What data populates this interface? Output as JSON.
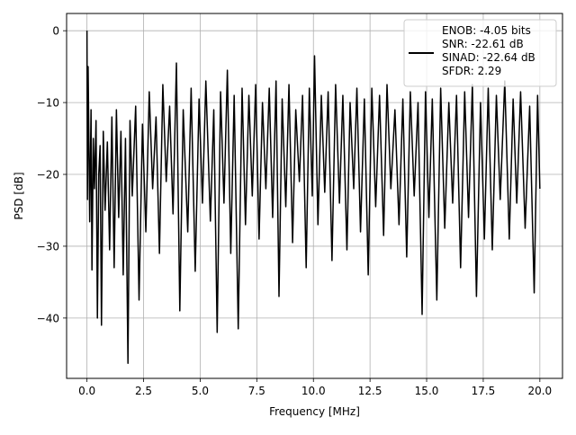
{
  "chart_data": {
    "type": "line",
    "xlabel": "Frequency [MHz]",
    "ylabel": "PSD [dB]",
    "xlim": [
      -0.9,
      21.0
    ],
    "ylim": [
      -48.4,
      2.4
    ],
    "x_ticks": [
      0.0,
      2.5,
      5.0,
      7.5,
      10.0,
      12.5,
      15.0,
      17.5,
      20.0
    ],
    "x_tick_labels": [
      "0.0",
      "2.5",
      "5.0",
      "7.5",
      "10.0",
      "12.5",
      "15.0",
      "17.5",
      "20.0"
    ],
    "y_ticks": [
      0,
      -10,
      -20,
      -30,
      -40
    ],
    "y_tick_labels": [
      "0",
      "−10",
      "−20",
      "−30",
      "−40"
    ],
    "grid": true,
    "legend_placement": "upper right",
    "series": [
      {
        "name": "ENOB: -4.05 bits\nSNR: -22.61 dB\nSINAD: -22.64 dB\nSFDR: 2.29",
        "color": "#000000",
        "points": [
          [
            0.0,
            0.0
          ],
          [
            0.02,
            -23.5
          ],
          [
            0.05,
            -5.0
          ],
          [
            0.08,
            -14.0
          ],
          [
            0.12,
            -26.6
          ],
          [
            0.18,
            -11.0
          ],
          [
            0.22,
            -33.3
          ],
          [
            0.28,
            -15.0
          ],
          [
            0.33,
            -22.0
          ],
          [
            0.4,
            -12.5
          ],
          [
            0.46,
            -40.0
          ],
          [
            0.52,
            -20.0
          ],
          [
            0.58,
            -16.0
          ],
          [
            0.64,
            -41.0
          ],
          [
            0.72,
            -14.0
          ],
          [
            0.8,
            -25.0
          ],
          [
            0.9,
            -15.5
          ],
          [
            1.0,
            -30.5
          ],
          [
            1.1,
            -12.0
          ],
          [
            1.2,
            -33.0
          ],
          [
            1.3,
            -11.0
          ],
          [
            1.4,
            -26.0
          ],
          [
            1.5,
            -14.0
          ],
          [
            1.6,
            -34.0
          ],
          [
            1.7,
            -15.0
          ],
          [
            1.81,
            -46.3
          ],
          [
            1.9,
            -12.5
          ],
          [
            2.0,
            -23.0
          ],
          [
            2.15,
            -10.5
          ],
          [
            2.3,
            -37.5
          ],
          [
            2.45,
            -13.0
          ],
          [
            2.6,
            -28.0
          ],
          [
            2.75,
            -8.5
          ],
          [
            2.9,
            -22.0
          ],
          [
            3.05,
            -12.0
          ],
          [
            3.2,
            -31.0
          ],
          [
            3.35,
            -7.5
          ],
          [
            3.5,
            -21.0
          ],
          [
            3.65,
            -10.5
          ],
          [
            3.8,
            -25.5
          ],
          [
            3.95,
            -4.5
          ],
          [
            4.1,
            -39.0
          ],
          [
            4.25,
            -11.0
          ],
          [
            4.45,
            -28.0
          ],
          [
            4.6,
            -8.0
          ],
          [
            4.78,
            -33.5
          ],
          [
            4.95,
            -9.5
          ],
          [
            5.1,
            -24.0
          ],
          [
            5.25,
            -7.0
          ],
          [
            5.45,
            -26.5
          ],
          [
            5.6,
            -11.0
          ],
          [
            5.75,
            -42.0
          ],
          [
            5.9,
            -8.5
          ],
          [
            6.05,
            -24.0
          ],
          [
            6.2,
            -5.5
          ],
          [
            6.35,
            -31.0
          ],
          [
            6.5,
            -9.0
          ],
          [
            6.68,
            -41.5
          ],
          [
            6.85,
            -8.0
          ],
          [
            7.0,
            -27.0
          ],
          [
            7.15,
            -9.0
          ],
          [
            7.3,
            -23.0
          ],
          [
            7.45,
            -7.5
          ],
          [
            7.6,
            -29.0
          ],
          [
            7.75,
            -10.0
          ],
          [
            7.9,
            -22.0
          ],
          [
            8.05,
            -8.0
          ],
          [
            8.2,
            -26.0
          ],
          [
            8.35,
            -7.0
          ],
          [
            8.48,
            -37.0
          ],
          [
            8.62,
            -9.5
          ],
          [
            8.78,
            -24.5
          ],
          [
            8.92,
            -7.5
          ],
          [
            9.08,
            -29.5
          ],
          [
            9.22,
            -11.0
          ],
          [
            9.38,
            -21.0
          ],
          [
            9.52,
            -9.0
          ],
          [
            9.68,
            -33.0
          ],
          [
            9.82,
            -8.0
          ],
          [
            9.95,
            -23.0
          ],
          [
            10.05,
            -3.5
          ],
          [
            10.2,
            -27.0
          ],
          [
            10.35,
            -9.0
          ],
          [
            10.5,
            -22.5
          ],
          [
            10.65,
            -8.5
          ],
          [
            10.82,
            -32.0
          ],
          [
            10.98,
            -7.5
          ],
          [
            11.15,
            -24.0
          ],
          [
            11.3,
            -9.0
          ],
          [
            11.48,
            -30.5
          ],
          [
            11.62,
            -10.0
          ],
          [
            11.78,
            -22.0
          ],
          [
            11.92,
            -8.0
          ],
          [
            12.08,
            -28.0
          ],
          [
            12.25,
            -9.5
          ],
          [
            12.42,
            -34.0
          ],
          [
            12.58,
            -8.0
          ],
          [
            12.75,
            -24.5
          ],
          [
            12.92,
            -9.0
          ],
          [
            13.1,
            -28.5
          ],
          [
            13.25,
            -7.5
          ],
          [
            13.42,
            -22.0
          ],
          [
            13.6,
            -11.0
          ],
          [
            13.78,
            -27.0
          ],
          [
            13.95,
            -9.5
          ],
          [
            14.12,
            -31.5
          ],
          [
            14.28,
            -8.5
          ],
          [
            14.45,
            -23.0
          ],
          [
            14.62,
            -10.0
          ],
          [
            14.8,
            -39.5
          ],
          [
            14.95,
            -8.5
          ],
          [
            15.1,
            -26.0
          ],
          [
            15.25,
            -9.5
          ],
          [
            15.45,
            -37.5
          ],
          [
            15.62,
            -8.0
          ],
          [
            15.8,
            -27.5
          ],
          [
            15.98,
            -10.0
          ],
          [
            16.15,
            -24.0
          ],
          [
            16.32,
            -9.0
          ],
          [
            16.5,
            -33.0
          ],
          [
            16.68,
            -8.5
          ],
          [
            16.85,
            -26.0
          ],
          [
            17.02,
            -7.5
          ],
          [
            17.2,
            -37.0
          ],
          [
            17.38,
            -10.0
          ],
          [
            17.55,
            -29.0
          ],
          [
            17.72,
            -8.0
          ],
          [
            17.9,
            -30.5
          ],
          [
            18.08,
            -9.0
          ],
          [
            18.25,
            -23.5
          ],
          [
            18.45,
            -7.0
          ],
          [
            18.65,
            -29.0
          ],
          [
            18.82,
            -9.5
          ],
          [
            18.98,
            -24.0
          ],
          [
            19.15,
            -8.5
          ],
          [
            19.35,
            -27.5
          ],
          [
            19.55,
            -10.5
          ],
          [
            19.75,
            -36.5
          ],
          [
            19.9,
            -9.0
          ],
          [
            20.0,
            -22.0
          ]
        ]
      }
    ]
  }
}
